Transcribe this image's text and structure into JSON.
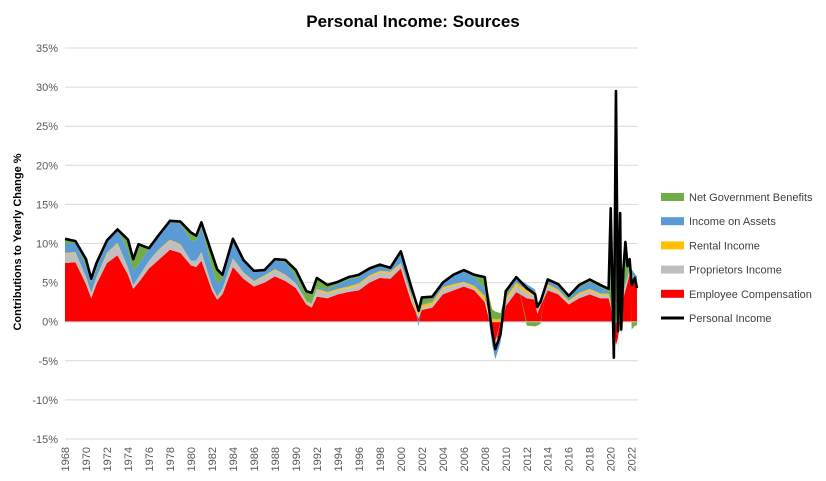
{
  "chart_data": {
    "type": "area",
    "title": "Personal Income: Sources",
    "ylabel": "Contributions to Yearly Change %",
    "xlabel": "",
    "ylim": [
      -15,
      35
    ],
    "yticks": [
      "35%",
      "30%",
      "25%",
      "20%",
      "15%",
      "10%",
      "5%",
      "0%",
      "-5%",
      "-10%",
      "-15%"
    ],
    "xlim": [
      1968,
      2022.6
    ],
    "xticks": [
      "1968",
      "1970",
      "1972",
      "1974",
      "1976",
      "1978",
      "1980",
      "1982",
      "1984",
      "1986",
      "1988",
      "1990",
      "1992",
      "1994",
      "1996",
      "1998",
      "2000",
      "2002",
      "2004",
      "2006",
      "2008",
      "2010",
      "2012",
      "2014",
      "2016",
      "2018",
      "2020",
      "2022"
    ],
    "grid": "horizontal",
    "legend_position": "right",
    "legend": [
      {
        "name": "Net Government Benefits",
        "color": "#70AD47",
        "kind": "area"
      },
      {
        "name": "Income on Assets",
        "color": "#5B9BD5",
        "kind": "area"
      },
      {
        "name": "Rental Income",
        "color": "#FFC000",
        "kind": "area"
      },
      {
        "name": "Proprietors Income",
        "color": "#BFBFBF",
        "kind": "area"
      },
      {
        "name": "Employee Compensation",
        "color": "#FF0000",
        "kind": "area"
      },
      {
        "name": "Personal Income",
        "color": "#000000",
        "kind": "line"
      }
    ],
    "stack_order": [
      "Employee Compensation",
      "Proprietors Income",
      "Rental Income",
      "Income on Assets",
      "Net Government Benefits"
    ],
    "x": [
      1968,
      1969,
      1970,
      1970.5,
      1971,
      1972,
      1973,
      1974,
      1974.5,
      1975,
      1976,
      1977,
      1978,
      1979,
      1980,
      1980.5,
      1981,
      1982,
      1982.5,
      1983,
      1984,
      1985,
      1986,
      1987,
      1988,
      1989,
      1990,
      1991,
      1991.5,
      1992,
      1993,
      1994,
      1995,
      1996,
      1997,
      1998,
      1999,
      2000,
      2001,
      2001.7,
      2002,
      2003,
      2004,
      2005,
      2006,
      2007,
      2008,
      2008.7,
      2009,
      2009.5,
      2010,
      2011,
      2012,
      2012.8,
      2013,
      2013.3,
      2014,
      2015,
      2016,
      2017,
      2018,
      2019,
      2019.8,
      2020,
      2020.3,
      2020.5,
      2020.7,
      2020.9,
      2021,
      2021.2,
      2021.4,
      2021.6,
      2021.8,
      2022,
      2022.3,
      2022.5
    ],
    "series": [
      {
        "name": "Employee Compensation",
        "values": [
          7.5,
          7.6,
          4.8,
          3.0,
          4.8,
          7.5,
          8.5,
          6.0,
          4.2,
          5.0,
          6.8,
          8.0,
          9.2,
          8.8,
          7.2,
          7.0,
          7.8,
          4.0,
          2.8,
          3.5,
          7.0,
          5.5,
          4.5,
          5.0,
          5.8,
          5.2,
          4.3,
          2.2,
          1.8,
          3.2,
          3.0,
          3.5,
          3.8,
          4.0,
          5.0,
          5.6,
          5.5,
          6.8,
          2.5,
          0.4,
          1.5,
          1.8,
          3.5,
          4.0,
          4.5,
          4.0,
          2.5,
          -1.2,
          -2.5,
          -1.5,
          2.0,
          3.8,
          3.0,
          2.8,
          1.0,
          2.0,
          4.0,
          3.5,
          2.2,
          3.0,
          3.5,
          3.0,
          3.0,
          2.0,
          -1.0,
          -3.0,
          -2.0,
          0.0,
          2.0,
          3.0,
          4.0,
          5.0,
          6.0,
          5.5,
          5.2,
          5.0
        ]
      },
      {
        "name": "Proprietors Income",
        "values": [
          1.2,
          1.2,
          0.8,
          0.6,
          0.8,
          1.2,
          1.5,
          0.8,
          0.5,
          0.7,
          1.0,
          1.2,
          1.2,
          1.0,
          0.6,
          0.8,
          1.0,
          0.5,
          0.3,
          0.6,
          1.0,
          0.7,
          0.6,
          0.8,
          0.8,
          0.7,
          0.5,
          0.3,
          0.4,
          0.8,
          0.6,
          0.5,
          0.5,
          0.7,
          0.7,
          0.7,
          0.7,
          0.6,
          0.5,
          0.3,
          0.3,
          0.4,
          0.7,
          0.6,
          0.5,
          0.3,
          0.2,
          -0.5,
          -0.5,
          0.0,
          0.6,
          0.8,
          0.7,
          0.5,
          0.4,
          0.5,
          0.6,
          0.4,
          0.3,
          0.5,
          0.5,
          0.4,
          0.4,
          0.2,
          -0.8,
          0.0,
          0.5,
          0.8,
          0.8,
          0.5,
          0.6,
          0.6,
          0.6,
          0.5,
          0.3,
          0.2
        ]
      },
      {
        "name": "Rental Income",
        "values": [
          0.1,
          0.1,
          0.1,
          0.1,
          0.1,
          0.1,
          0.1,
          0.1,
          0.0,
          0.0,
          0.0,
          0.1,
          0.1,
          0.1,
          0.0,
          0.0,
          0.1,
          0.1,
          0.1,
          0.1,
          0.1,
          0.1,
          0.1,
          0.1,
          0.1,
          0.1,
          0.1,
          0.1,
          0.1,
          0.2,
          0.2,
          0.2,
          0.2,
          0.2,
          0.2,
          0.2,
          0.2,
          0.1,
          0.3,
          0.3,
          0.3,
          0.3,
          0.2,
          0.2,
          0.1,
          0.3,
          0.6,
          0.4,
          0.3,
          0.3,
          0.4,
          0.4,
          0.3,
          0.2,
          0.2,
          0.2,
          0.2,
          0.2,
          0.2,
          0.2,
          0.2,
          0.2,
          0.2,
          0.2,
          0.2,
          0.2,
          0.2,
          0.2,
          0.2,
          0.2,
          0.2,
          0.1,
          0.1,
          0.1,
          0.1,
          0.1
        ]
      },
      {
        "name": "Income on Assets",
        "values": [
          1.2,
          1.2,
          1.4,
          1.2,
          1.2,
          1.3,
          1.7,
          2.2,
          1.8,
          1.6,
          1.5,
          1.8,
          2.3,
          2.6,
          2.6,
          2.5,
          3.2,
          2.3,
          1.6,
          1.3,
          2.3,
          1.5,
          1.1,
          0.6,
          1.2,
          1.6,
          0.9,
          0.0,
          0.2,
          0.2,
          0.3,
          0.6,
          0.9,
          0.8,
          0.9,
          0.8,
          0.4,
          1.5,
          0.5,
          -0.6,
          0.0,
          0.2,
          0.4,
          1.0,
          1.4,
          1.1,
          0.9,
          -1.2,
          -1.8,
          -1.2,
          0.1,
          0.7,
          0.8,
          0.6,
          0.8,
          0.1,
          0.6,
          0.4,
          0.3,
          0.7,
          0.9,
          0.8,
          0.3,
          0.1,
          0.0,
          0.0,
          0.1,
          0.2,
          0.3,
          0.4,
          0.4,
          0.4,
          0.5,
          0.6,
          0.5,
          0.5
        ]
      },
      {
        "name": "Net Government Benefits",
        "values": [
          0.6,
          0.2,
          0.9,
          0.6,
          0.6,
          0.3,
          0.0,
          1.4,
          1.5,
          2.6,
          0.1,
          0.1,
          0.1,
          0.3,
          1.0,
          0.7,
          0.6,
          1.8,
          1.9,
          0.5,
          0.2,
          0.1,
          0.2,
          0.1,
          0.1,
          0.3,
          0.8,
          1.3,
          1.2,
          1.2,
          0.6,
          0.3,
          0.3,
          0.3,
          0.0,
          0.0,
          0.1,
          0.0,
          0.6,
          1.0,
          1.0,
          0.5,
          0.2,
          0.2,
          0.1,
          0.3,
          1.5,
          1.2,
          1.0,
          0.8,
          0.8,
          0.0,
          -0.5,
          -0.6,
          -0.5,
          -0.3,
          0.0,
          0.3,
          0.3,
          0.3,
          0.3,
          0.3,
          0.3,
          12.0,
          -3.0,
          20.0,
          -2.0,
          10.0,
          -2.0,
          2.0,
          5.0,
          1.0,
          0.8,
          -1.0,
          -0.5,
          -0.5
        ]
      },
      {
        "name": "Personal Income",
        "type": "line",
        "values": [
          10.6,
          10.3,
          8.0,
          5.5,
          7.5,
          10.4,
          11.8,
          10.5,
          8.0,
          9.9,
          9.4,
          11.2,
          12.9,
          12.8,
          11.4,
          11.0,
          12.7,
          8.7,
          6.7,
          6.0,
          10.6,
          7.9,
          6.5,
          6.6,
          8.0,
          7.9,
          6.6,
          3.9,
          3.7,
          5.6,
          4.7,
          5.1,
          5.7,
          6.0,
          6.8,
          7.3,
          6.9,
          9.0,
          4.4,
          1.4,
          3.1,
          3.2,
          5.0,
          6.0,
          6.6,
          6.0,
          5.7,
          -1.3,
          -3.5,
          -1.6,
          3.9,
          5.7,
          4.3,
          3.5,
          1.9,
          2.5,
          5.4,
          4.8,
          3.3,
          4.7,
          5.4,
          4.7,
          4.2,
          14.5,
          -4.6,
          29.5,
          -1.2,
          13.9,
          -1.0,
          6.6,
          10.2,
          7.1,
          8.0,
          4.7,
          5.6,
          4.3
        ]
      }
    ]
  }
}
